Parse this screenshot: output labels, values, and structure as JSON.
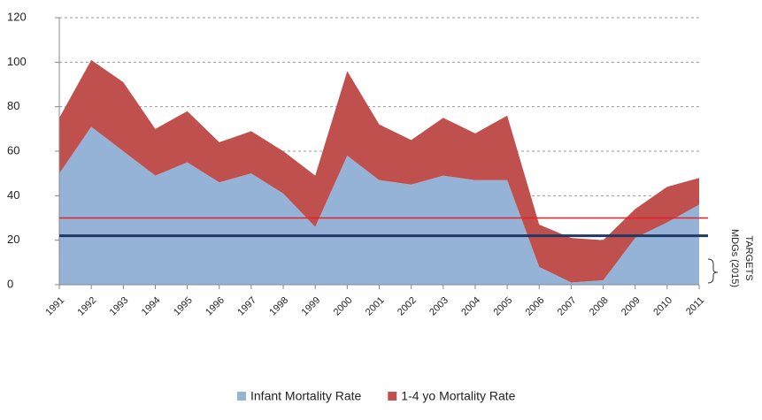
{
  "chart_data": {
    "type": "stacked-area",
    "categories": [
      "1991",
      "1992",
      "1993",
      "1994",
      "1995",
      "1996",
      "1997",
      "1998",
      "1999",
      "2000",
      "2001",
      "2002",
      "2003",
      "2004",
      "2005",
      "2006",
      "2007",
      "2008",
      "2009",
      "2010",
      "2011"
    ],
    "series": [
      {
        "name": "Infant Mortality Rate",
        "color": "#95b3d7",
        "values": [
          50,
          71,
          60,
          49,
          55,
          46,
          50,
          41,
          26,
          58,
          47,
          45,
          49,
          47,
          47,
          8,
          1,
          2,
          21,
          28,
          36
        ]
      },
      {
        "name": "1-4 yo Mortality Rate",
        "color": "#c0504d",
        "values": [
          25,
          30,
          31,
          21,
          23,
          18,
          19,
          19,
          23,
          38,
          25,
          20,
          26,
          21,
          29,
          19,
          20,
          18,
          13,
          16,
          12
        ]
      }
    ],
    "ylim": [
      0,
      120
    ],
    "yticks": [
      0,
      20,
      40,
      60,
      80,
      100,
      120
    ],
    "grid": true,
    "target_lines": [
      {
        "value": 30,
        "color": "#e8202a"
      },
      {
        "value": 22,
        "color": "#1f3864"
      }
    ],
    "annotations": [
      "MDGs (2015)",
      "TARGETS"
    ]
  }
}
